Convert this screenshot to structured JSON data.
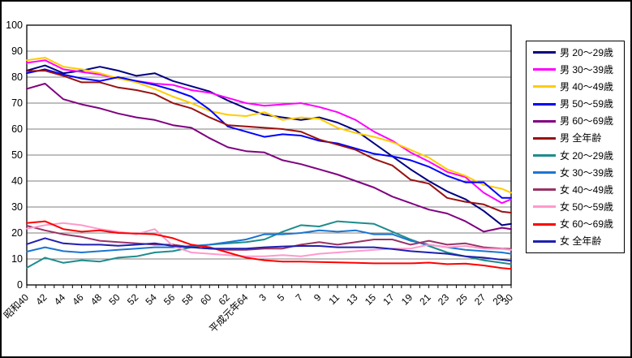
{
  "chart_data": {
    "type": "line",
    "title": "",
    "xlabel": "",
    "ylabel": "",
    "ylim": [
      0,
      100
    ],
    "y_ticks": [
      0,
      10,
      20,
      30,
      40,
      50,
      60,
      70,
      80,
      90,
      100
    ],
    "grid": true,
    "legend_position": "right",
    "x_years": [
      1965,
      1967,
      1969,
      1971,
      1973,
      1975,
      1977,
      1979,
      1981,
      1983,
      1985,
      1987,
      1989,
      1991,
      1993,
      1995,
      1997,
      1999,
      2001,
      2003,
      2005,
      2007,
      2009,
      2011,
      2013,
      2015,
      2017,
      2018
    ],
    "x_tick_labels": [
      "昭和40",
      "42",
      "44",
      "46",
      "48",
      "50",
      "52",
      "54",
      "56",
      "58",
      "60",
      "62",
      "平成元年64",
      "3",
      "5",
      "7",
      "9",
      "11",
      "13",
      "15",
      "17",
      "19",
      "21",
      "23",
      "25",
      "27",
      "29",
      "30"
    ],
    "x_minor_tick_years": {
      "start": 1965,
      "end": 2018,
      "step": 1
    },
    "series": [
      {
        "name": "男 20〜29歳",
        "color": "#000080",
        "values": [
          82.5,
          84.5,
          81.5,
          82.5,
          84,
          82.5,
          80.5,
          81.5,
          78.5,
          76.5,
          74.5,
          71,
          68,
          65.5,
          64.5,
          63.5,
          64.5,
          62.5,
          59.5,
          54.5,
          49.5,
          44.5,
          40,
          36,
          33,
          28.5,
          23,
          23.5
        ]
      },
      {
        "name": "男 30〜39歳",
        "color": "#FF00FF",
        "values": [
          85.5,
          86.5,
          83,
          82,
          81,
          79.5,
          78.5,
          77.5,
          77,
          75,
          74,
          72,
          70,
          69,
          69.5,
          70,
          68.5,
          66.5,
          63.5,
          59,
          55.5,
          51,
          47.5,
          43.5,
          41.5,
          35.5,
          31.5,
          33
        ]
      },
      {
        "name": "男 40〜49歳",
        "color": "#FFCC00",
        "values": [
          86.5,
          87.5,
          84,
          83,
          81.5,
          79.5,
          78,
          75.5,
          72.5,
          70,
          67,
          65.5,
          65,
          66.5,
          63.5,
          64.5,
          64,
          60.5,
          58.5,
          57,
          55,
          52,
          49,
          44.5,
          42,
          38.5,
          37,
          35.5
        ]
      },
      {
        "name": "男 50〜59歳",
        "color": "#0000FF",
        "values": [
          81.5,
          83,
          81,
          79.5,
          78.5,
          80,
          78.5,
          77,
          75,
          72.5,
          67.5,
          61,
          59,
          57,
          58,
          57.5,
          55.5,
          54.5,
          52.5,
          50.5,
          49.5,
          48,
          45.5,
          42,
          39.5,
          39.5,
          33.5,
          33.5
        ]
      },
      {
        "name": "男 60〜69歳",
        "color": "#800080",
        "values": [
          75.5,
          77.5,
          71.5,
          69.5,
          68,
          66,
          64.5,
          63.5,
          61.5,
          60.5,
          56.5,
          53,
          51.5,
          51,
          48,
          46.5,
          44.5,
          42.5,
          40,
          37.5,
          34,
          31.5,
          29,
          27.5,
          24.5,
          20.5,
          22,
          21.5
        ]
      },
      {
        "name": "男 全年齢",
        "color": "#991111",
        "values": [
          82.3,
          82.5,
          80.5,
          78,
          78,
          76,
          75,
          73.5,
          70,
          68,
          64.5,
          61.5,
          61,
          60.5,
          60,
          59,
          56,
          54,
          52,
          48.5,
          46,
          40.5,
          39,
          33.5,
          32,
          31,
          28.2,
          27.8
        ]
      },
      {
        "name": "女 20〜29歳",
        "color": "#1E8C8C",
        "values": [
          6.6,
          10.5,
          8.5,
          9.5,
          9,
          10.5,
          11,
          12.5,
          13,
          14.5,
          15.5,
          16,
          16.5,
          17.5,
          20.5,
          23,
          22.5,
          24.5,
          24,
          23.5,
          20.5,
          17.5,
          15,
          12.5,
          11,
          9.5,
          8.5,
          8
        ]
      },
      {
        "name": "女 30〜39歳",
        "color": "#1B75D1",
        "values": [
          12.8,
          14.5,
          13,
          12.5,
          13,
          13.5,
          14,
          14.5,
          14.5,
          15,
          15.5,
          16.5,
          17.5,
          19.5,
          19.5,
          20,
          21,
          20.5,
          21,
          19.5,
          19.5,
          17,
          15.5,
          14.5,
          13.5,
          13,
          12.5,
          12
        ]
      },
      {
        "name": "女 40〜49歳",
        "color": "#993366",
        "values": [
          22.8,
          21,
          19.5,
          18.5,
          17,
          16.5,
          16,
          15.5,
          15.5,
          14.5,
          14,
          13.5,
          13.5,
          14,
          14,
          15.5,
          16.5,
          15.5,
          16.5,
          17.5,
          17.5,
          15.5,
          17,
          15.5,
          16,
          14.5,
          14,
          13.9
        ]
      },
      {
        "name": "女 50〜59歳",
        "color": "#FF99CC",
        "values": [
          21.7,
          23,
          23.8,
          23,
          21.5,
          20.5,
          19.5,
          21.5,
          15,
          12.5,
          12,
          11.5,
          11,
          11,
          11.5,
          11,
          12,
          12.5,
          13,
          13.5,
          14,
          14,
          15.5,
          14.5,
          15,
          14,
          13.8,
          13.5
        ]
      },
      {
        "name": "女 60〜69歳",
        "color": "#FF0000",
        "values": [
          23.8,
          24.5,
          21.5,
          20.5,
          21,
          20,
          19.8,
          19.5,
          18,
          15.5,
          14.5,
          12.5,
          10.5,
          9.5,
          9,
          9,
          8.8,
          8.7,
          8.5,
          8.3,
          8.3,
          8.3,
          8.6,
          8,
          8.2,
          7.5,
          6.5,
          6.2
        ]
      },
      {
        "name": "女 全年齢",
        "color": "#1F1FAF",
        "values": [
          15.7,
          18,
          16,
          15.5,
          15.5,
          15.1,
          15.5,
          16,
          15,
          14.5,
          14,
          14,
          14,
          14.5,
          14.8,
          15,
          15,
          14.5,
          14.5,
          14.5,
          13.8,
          13,
          12.5,
          12,
          11,
          10.5,
          9.7,
          9.3
        ]
      }
    ]
  }
}
